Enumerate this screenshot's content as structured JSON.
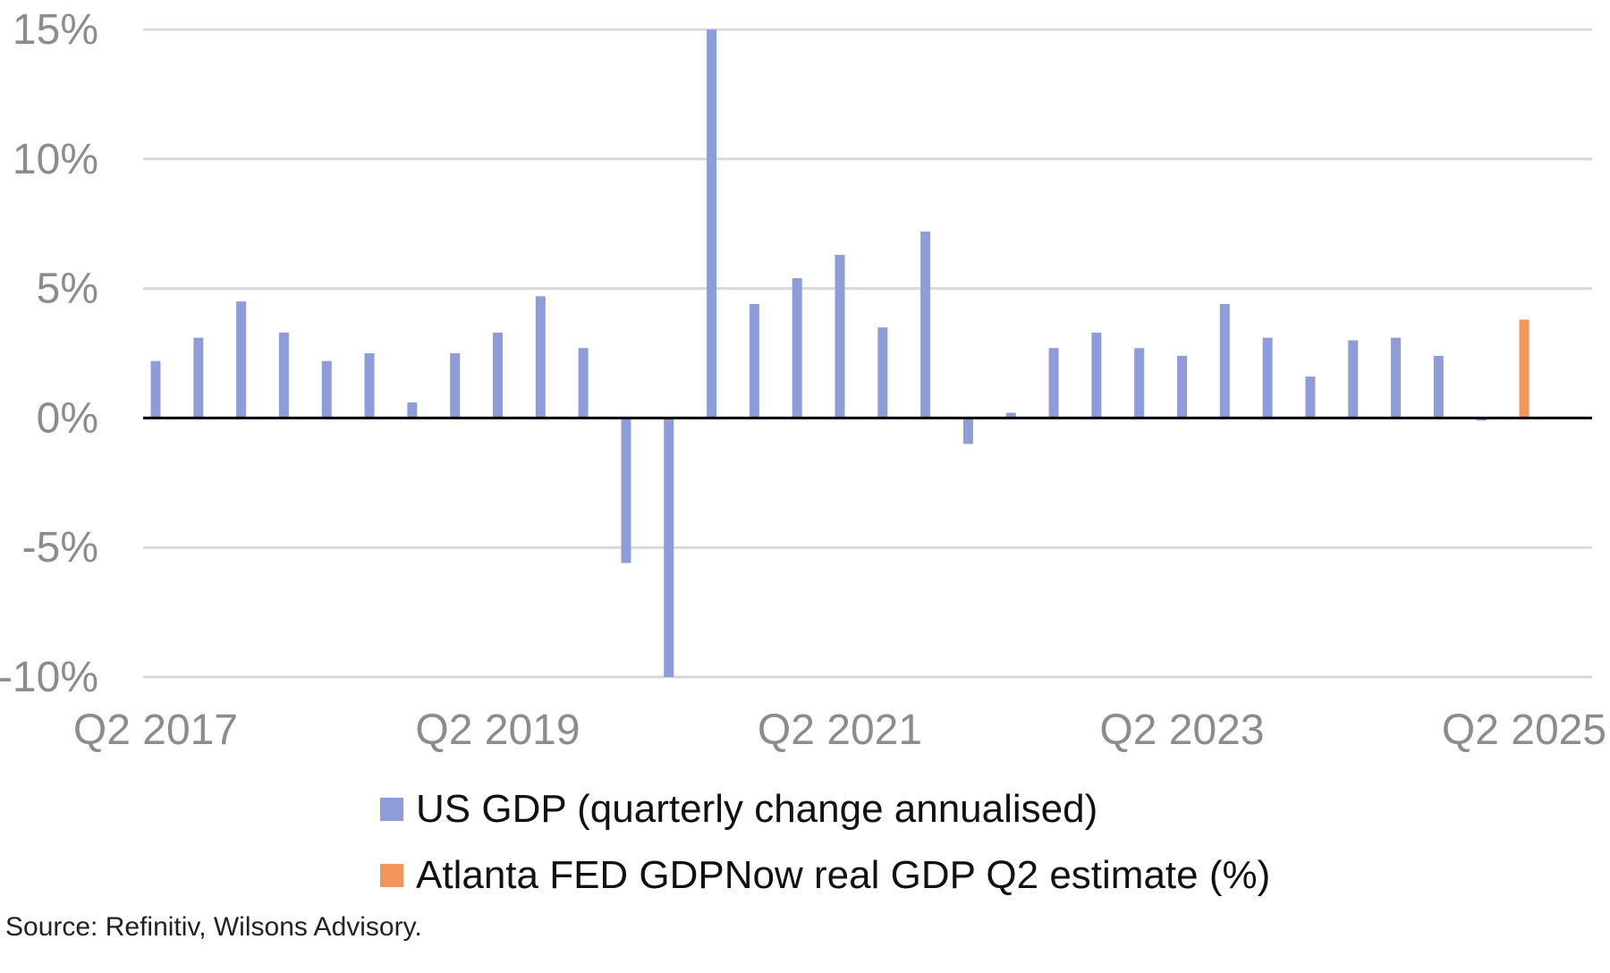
{
  "chart_data": {
    "type": "bar",
    "ylim": [
      -10,
      15
    ],
    "yticks": [
      15,
      10,
      5,
      0,
      -5,
      -10
    ],
    "ytick_labels": [
      "15%",
      "10%",
      "5%",
      "0%",
      "-5%",
      "-10%"
    ],
    "grid": true,
    "xtick_labels": [
      "Q2 2017",
      "Q2 2019",
      "Q2 2021",
      "Q2 2023",
      "Q2 2025"
    ],
    "categories": [
      "Q2 2017",
      "Q3 2017",
      "Q4 2017",
      "Q1 2018",
      "Q2 2018",
      "Q3 2018",
      "Q4 2018",
      "Q1 2019",
      "Q2 2019",
      "Q3 2019",
      "Q4 2019",
      "Q1 2020",
      "Q2 2020",
      "Q3 2020",
      "Q4 2020",
      "Q1 2021",
      "Q2 2021",
      "Q3 2021",
      "Q4 2021",
      "Q1 2022",
      "Q2 2022",
      "Q3 2022",
      "Q4 2022",
      "Q1 2023",
      "Q2 2023",
      "Q3 2023",
      "Q4 2023",
      "Q1 2024",
      "Q2 2024",
      "Q3 2024",
      "Q4 2024",
      "Q1 2025",
      "Q2 2025"
    ],
    "series": [
      {
        "name": "US GDP (quarterly change annualised)",
        "color": "#8e9cd9",
        "values": [
          2.2,
          3.1,
          4.5,
          3.3,
          2.2,
          2.5,
          0.6,
          2.5,
          3.3,
          4.7,
          2.7,
          -5.6,
          -10,
          15,
          4.4,
          5.4,
          6.3,
          3.5,
          7.2,
          -1.0,
          0.2,
          2.7,
          3.3,
          2.7,
          2.4,
          4.4,
          3.1,
          1.6,
          3.0,
          3.1,
          2.4,
          -0.1,
          null
        ]
      },
      {
        "name": "Atlanta FED GDPNow real GDP Q2 estimate (%)",
        "color": "#f0965c",
        "values": [
          null,
          null,
          null,
          null,
          null,
          null,
          null,
          null,
          null,
          null,
          null,
          null,
          null,
          null,
          null,
          null,
          null,
          null,
          null,
          null,
          null,
          null,
          null,
          null,
          null,
          null,
          null,
          null,
          null,
          null,
          null,
          null,
          3.8
        ]
      }
    ]
  },
  "legend": {
    "items": [
      {
        "label": "US GDP (quarterly change annualised)",
        "color": "#8e9cd9"
      },
      {
        "label": "Atlanta FED GDPNow real GDP Q2 estimate (%)",
        "color": "#f0965c"
      }
    ]
  },
  "source": "Source: Refinitiv, Wilsons Advisory."
}
